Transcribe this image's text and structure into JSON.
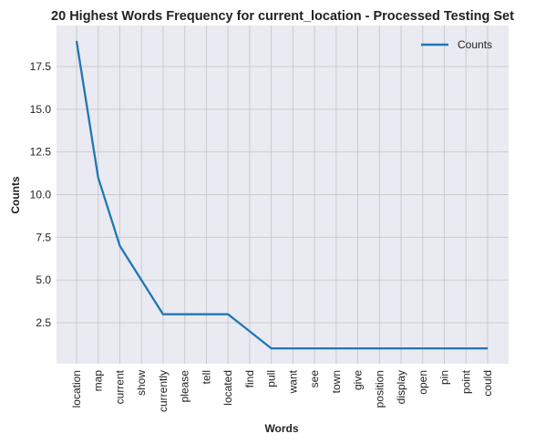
{
  "chart_data": {
    "type": "line",
    "title": "20 Highest Words Frequency for current_location - Processed Testing Set",
    "xlabel": "Words",
    "ylabel": "Counts",
    "categories": [
      "location",
      "map",
      "current",
      "show",
      "currently",
      "please",
      "tell",
      "located",
      "find",
      "pull",
      "want",
      "see",
      "town",
      "give",
      "position",
      "display",
      "open",
      "pin",
      "point",
      "could"
    ],
    "series": [
      {
        "name": "Counts",
        "values": [
          19,
          11,
          7,
          5,
          3,
          3,
          3,
          3,
          2,
          1,
          1,
          1,
          1,
          1,
          1,
          1,
          1,
          1,
          1,
          1
        ]
      }
    ],
    "yticks": [
      "2.5",
      "5.0",
      "7.5",
      "10.0",
      "12.5",
      "15.0",
      "17.5"
    ],
    "ylim": [
      0.1,
      19.9
    ],
    "grid": true,
    "legend": "top-right",
    "colors": {
      "line": "#1f77b4",
      "background": "#eaeaf2",
      "grid": "#c8c8c8"
    }
  }
}
